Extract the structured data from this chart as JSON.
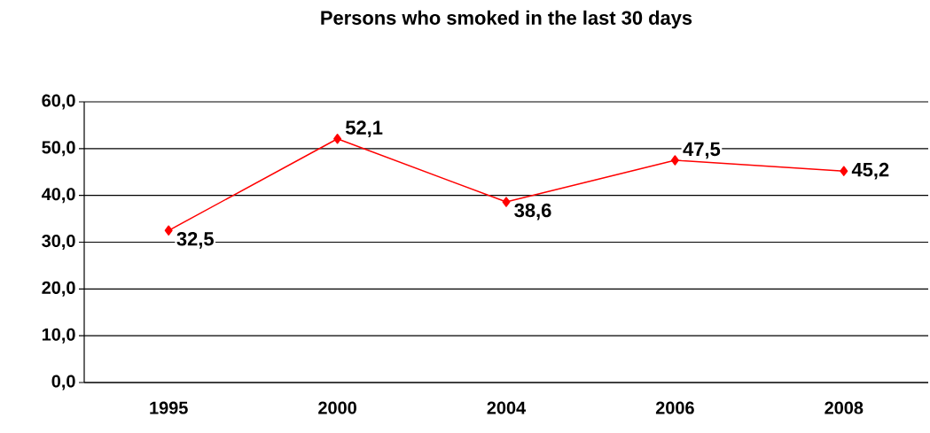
{
  "chart_data": {
    "type": "line",
    "title": "Persons who smoked in the last 30 days",
    "categories": [
      "1995",
      "2000",
      "2004",
      "2006",
      "2008"
    ],
    "series": [
      {
        "color": "#ff0000",
        "values": [
          32.5,
          52.1,
          38.6,
          47.5,
          45.2
        ],
        "value_labels": [
          "32,5",
          "52,1",
          "38,6",
          "47,5",
          "45,2"
        ]
      }
    ],
    "ylim": [
      0,
      60
    ],
    "yticks": [
      {
        "value": 0,
        "label": "0,0"
      },
      {
        "value": 10,
        "label": "10,0"
      },
      {
        "value": 20,
        "label": "20,0"
      },
      {
        "value": 30,
        "label": "30,0"
      },
      {
        "value": 40,
        "label": "40,0"
      },
      {
        "value": 50,
        "label": "50,0"
      },
      {
        "value": 60,
        "label": "60,0"
      }
    ],
    "grid": "y",
    "marker": "diamond",
    "line_style": "solid"
  }
}
